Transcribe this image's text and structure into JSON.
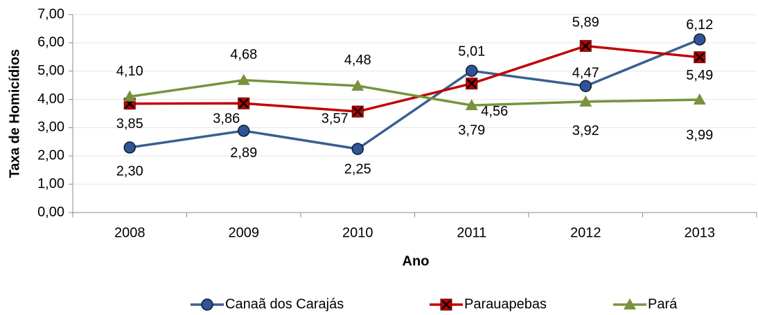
{
  "chart_data": {
    "type": "line",
    "y_label": "Taxa de Homicídios",
    "x_label": "Ano",
    "categories": [
      "2008",
      "2009",
      "2010",
      "2011",
      "2012",
      "2013"
    ],
    "series": [
      {
        "name": "Canaã dos Carajás",
        "color": "#3a5f8f",
        "marker": "circle",
        "values": [
          2.3,
          2.89,
          2.25,
          5.01,
          4.47,
          6.12
        ],
        "value_labels": [
          "2,30",
          "2,89",
          "2,25",
          "5,01",
          "4,47",
          "6,12"
        ]
      },
      {
        "name": "Parauapebas",
        "color": "#c00000",
        "marker": "x-square",
        "values": [
          3.85,
          3.86,
          3.57,
          4.56,
          5.89,
          5.49
        ],
        "value_labels": [
          "3,85",
          "3,86",
          "3,57",
          "4,56",
          "5,89",
          "5,49"
        ]
      },
      {
        "name": "Pará",
        "color": "#77933c",
        "marker": "triangle",
        "values": [
          4.1,
          4.68,
          4.48,
          3.79,
          3.92,
          3.99
        ],
        "value_labels": [
          "4,10",
          "4,68",
          "4,48",
          "3,79",
          "3,92",
          "3,99"
        ]
      }
    ],
    "ylim": [
      0,
      7
    ],
    "yticks": [
      {
        "value": 0,
        "label": "0,00"
      },
      {
        "value": 1,
        "label": "1,00"
      },
      {
        "value": 2,
        "label": "2,00"
      },
      {
        "value": 3,
        "label": "3,00"
      },
      {
        "value": 4,
        "label": "4,00"
      },
      {
        "value": 5,
        "label": "5,00"
      },
      {
        "value": 6,
        "label": "6,00"
      },
      {
        "value": 7,
        "label": "7,00"
      }
    ],
    "grid": true,
    "legend": "bottom"
  }
}
